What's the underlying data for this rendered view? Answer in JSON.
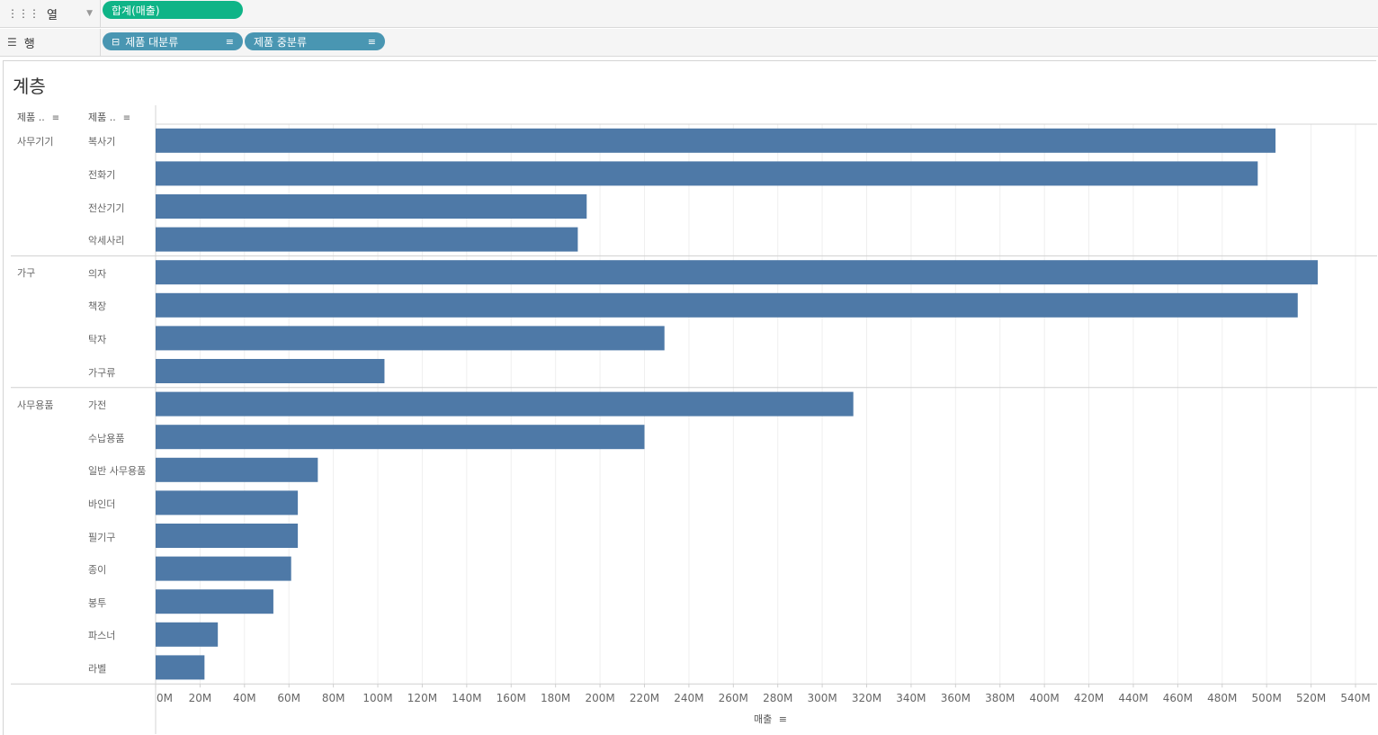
{
  "shelves": {
    "columns": {
      "label": "열",
      "pill": "합계(매출)"
    },
    "rows": {
      "label": "행",
      "pills": [
        "제품 대분류",
        "제품 중분류"
      ]
    }
  },
  "sheet": {
    "title": "계층",
    "headers": {
      "category": "제품 ..",
      "subcategory": "제품 .."
    },
    "axis_title": "매출"
  },
  "colors": {
    "bar": "#4e79a7",
    "pill_measure": "#0fb487",
    "pill_dimension": "#4996b2"
  },
  "chart_data": {
    "type": "bar",
    "orientation": "horizontal",
    "xlabel": "매출",
    "xlim": [
      0,
      540000000
    ],
    "x_ticks": [
      "0M",
      "20M",
      "40M",
      "60M",
      "80M",
      "100M",
      "120M",
      "140M",
      "160M",
      "180M",
      "200M",
      "220M",
      "240M",
      "260M",
      "280M",
      "300M",
      "320M",
      "340M",
      "360M",
      "380M",
      "400M",
      "420M",
      "440M",
      "460M",
      "480M",
      "500M",
      "520M",
      "540M"
    ],
    "groups": [
      {
        "category": "사무기기",
        "items": [
          {
            "name": "복사기",
            "value": 504000000
          },
          {
            "name": "전화기",
            "value": 496000000
          },
          {
            "name": "전산기기",
            "value": 194000000
          },
          {
            "name": "악세사리",
            "value": 190000000
          }
        ]
      },
      {
        "category": "가구",
        "items": [
          {
            "name": "의자",
            "value": 523000000
          },
          {
            "name": "책장",
            "value": 514000000
          },
          {
            "name": "탁자",
            "value": 229000000
          },
          {
            "name": "가구류",
            "value": 103000000
          }
        ]
      },
      {
        "category": "사무용품",
        "items": [
          {
            "name": "가전",
            "value": 314000000
          },
          {
            "name": "수납용품",
            "value": 220000000
          },
          {
            "name": "일반 사무용품",
            "value": 73000000
          },
          {
            "name": "바인더",
            "value": 64000000
          },
          {
            "name": "필기구",
            "value": 64000000
          },
          {
            "name": "종이",
            "value": 61000000
          },
          {
            "name": "봉투",
            "value": 53000000
          },
          {
            "name": "파스너",
            "value": 28000000
          },
          {
            "name": "라벨",
            "value": 22000000
          }
        ]
      }
    ]
  }
}
